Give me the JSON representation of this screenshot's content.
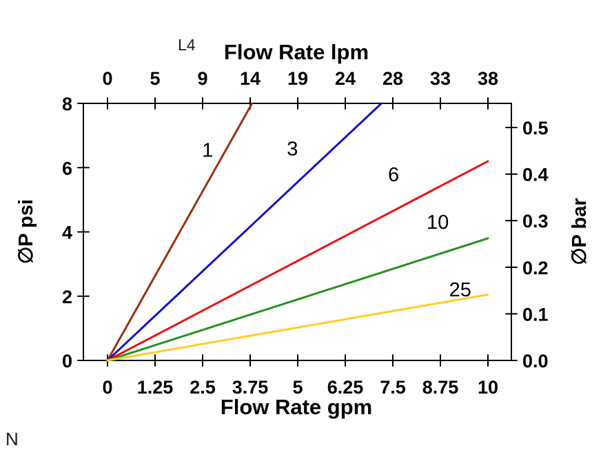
{
  "page": {
    "background": "#ffffff"
  },
  "annotations": {
    "top_left_code": "L4",
    "bottom_left_code": "N"
  },
  "chart_data": {
    "type": "line",
    "title_top_axis": "Flow Rate lpm",
    "xlabel_bottom": "Flow Rate gpm",
    "ylabel_left": "∅P psi",
    "ylabel_right": "∅P bar",
    "axis_color": "#000000",
    "grid": false,
    "legend": "labels placed beside each curve",
    "axes": {
      "bottom": {
        "unit": "gpm",
        "tick_values": [
          0,
          1.25,
          2.5,
          3.75,
          5,
          6.25,
          7.5,
          8.75,
          10
        ],
        "tick_labels": [
          "0",
          "1.25",
          "2.5",
          "3.75",
          "5",
          "6.25",
          "7.5",
          "8.75",
          "10"
        ],
        "range_gpm": [
          -0.63,
          10.63
        ]
      },
      "top": {
        "unit": "lpm",
        "tick_labels": [
          "0",
          "5",
          "9",
          "14",
          "19",
          "24",
          "28",
          "33",
          "38"
        ],
        "aligned_with_bottom_ticks": true
      },
      "left": {
        "unit": "psi",
        "tick_values": [
          0,
          2,
          4,
          6,
          8
        ],
        "tick_labels": [
          "0",
          "2",
          "4",
          "6",
          "8"
        ],
        "range_psi": [
          0,
          8
        ]
      },
      "right": {
        "unit": "bar",
        "tick_values": [
          0,
          0.1,
          0.2,
          0.3,
          0.4,
          0.5
        ],
        "tick_labels": [
          "0.0",
          "0.1",
          "0.2",
          "0.3",
          "0.4",
          "0.5"
        ],
        "psi_per_bar": 14.5
      }
    },
    "series": [
      {
        "label": "1",
        "color": "#993311",
        "points_gpm_psi": [
          [
            0,
            0
          ],
          [
            3.8,
            8
          ]
        ],
        "label_at_gpm_psi": [
          2.63,
          6.55
        ]
      },
      {
        "label": "3",
        "color": "#1111cc",
        "points_gpm_psi": [
          [
            0,
            0
          ],
          [
            7.2,
            8
          ]
        ],
        "label_at_gpm_psi": [
          4.86,
          6.6
        ]
      },
      {
        "label": "6",
        "color": "#ee1111",
        "points_gpm_psi": [
          [
            0,
            0
          ],
          [
            10,
            6.2
          ]
        ],
        "label_at_gpm_psi": [
          7.52,
          5.79
        ]
      },
      {
        "label": "10",
        "color": "#229122",
        "points_gpm_psi": [
          [
            0,
            0
          ],
          [
            10,
            3.8
          ]
        ],
        "label_at_gpm_psi": [
          8.68,
          4.31
        ]
      },
      {
        "label": "25",
        "color": "#ffcc22",
        "points_gpm_psi": [
          [
            0,
            0
          ],
          [
            10,
            2.05
          ]
        ],
        "label_at_gpm_psi": [
          9.27,
          2.21
        ]
      }
    ]
  }
}
